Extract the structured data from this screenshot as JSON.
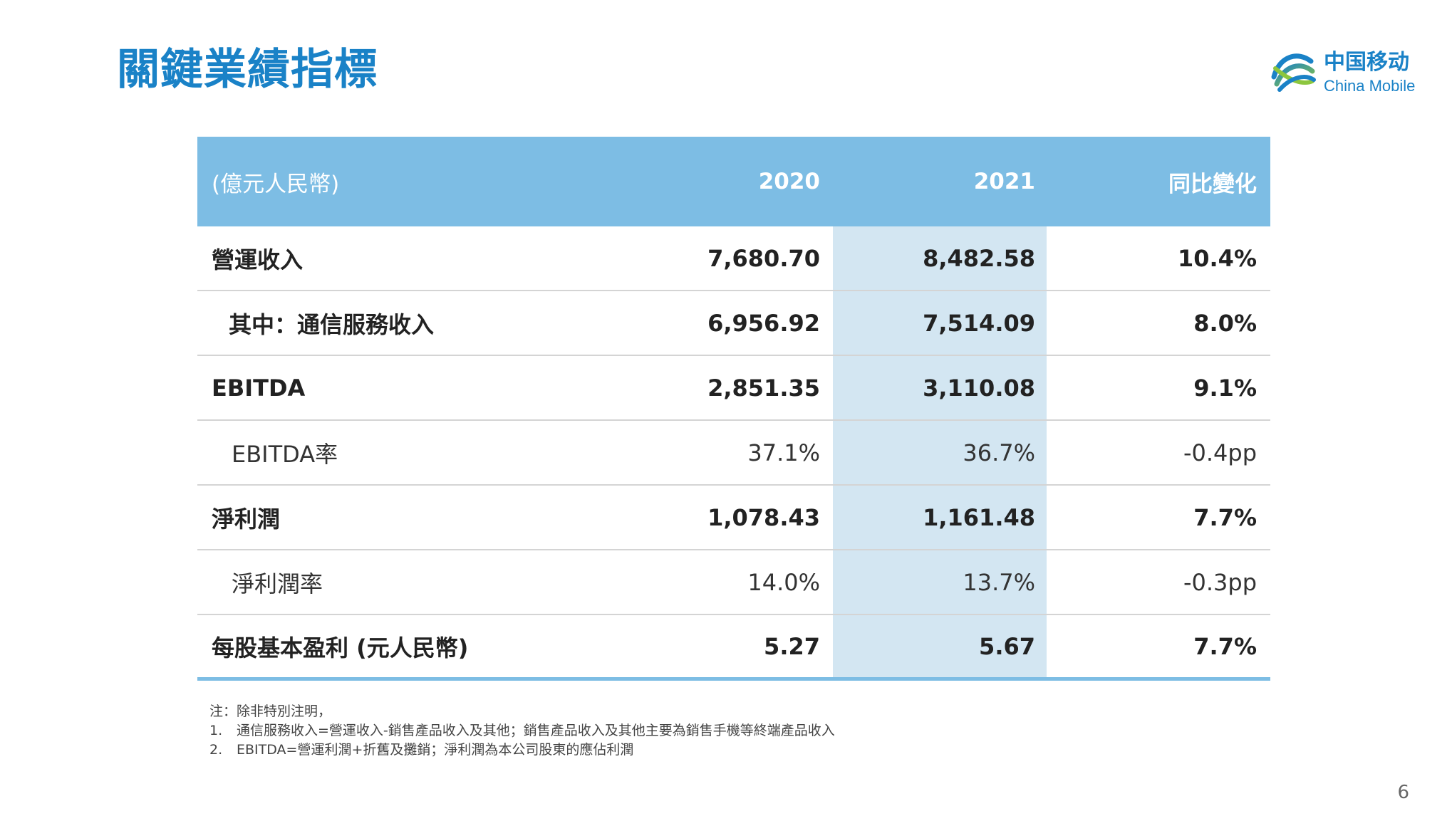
{
  "title": "關鍵業績指標",
  "logo": {
    "cn": "中国移动",
    "en": "China Mobile",
    "icon": "china-mobile-logo-icon"
  },
  "table": {
    "headers": [
      "(億元人民幣)",
      "2020",
      "2021",
      "同比變化"
    ],
    "rows": [
      {
        "label": "營運收入",
        "v2020": "7,680.70",
        "v2021": "8,482.58",
        "yoy": "10.4%"
      },
      {
        "label": "其中：通信服務收入",
        "v2020": "6,956.92",
        "v2021": "7,514.09",
        "yoy": "8.0%"
      },
      {
        "label": "EBITDA",
        "v2020": "2,851.35",
        "v2021": "3,110.08",
        "yoy": "9.1%"
      },
      {
        "label": "EBITDA率",
        "v2020": "37.1%",
        "v2021": "36.7%",
        "yoy": "-0.4pp"
      },
      {
        "label": "淨利潤",
        "v2020": "1,078.43",
        "v2021": "1,161.48",
        "yoy": "7.7%"
      },
      {
        "label": "淨利潤率",
        "v2020": "14.0%",
        "v2021": "13.7%",
        "yoy": "-0.3pp"
      },
      {
        "label": "每股基本盈利 (元人民幣)",
        "v2020": "5.27",
        "v2021": "5.67",
        "yoy": "7.7%"
      }
    ]
  },
  "notes": {
    "intro": "注：除非特別注明，",
    "items": [
      {
        "num": "1.",
        "text": "通信服務收入=營運收入-銷售產品收入及其他；銷售產品收入及其他主要為銷售手機等終端產品收入"
      },
      {
        "num": "2.",
        "text": "EBITDA=營運利潤+折舊及攤銷；淨利潤為本公司股東的應佔利潤"
      }
    ]
  },
  "page_number": "6",
  "colors": {
    "brand_blue": "#1a82c7",
    "header_bg": "#7dbde4",
    "highlight_col": "#d3e6f2"
  }
}
